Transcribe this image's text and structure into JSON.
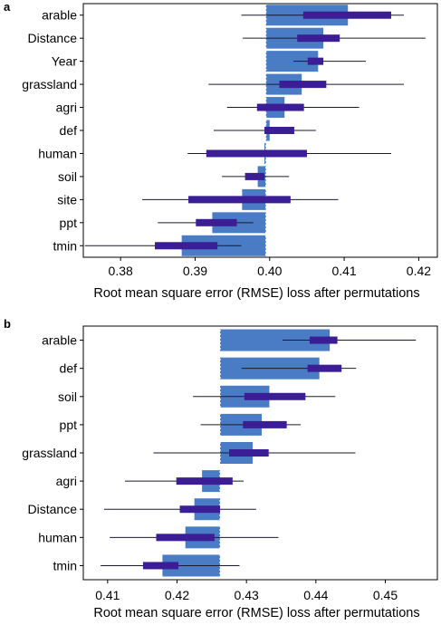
{
  "chart_data": [
    {
      "panel": "a",
      "type": "bar",
      "title": "",
      "xlabel": "Root mean square error (RMSE) loss after permutations",
      "ylabel": "",
      "xlim": [
        0.375,
        0.4225
      ],
      "ticks": [
        0.38,
        0.39,
        0.4,
        0.41,
        0.42
      ],
      "tick_labels": [
        "0.38",
        "0.39",
        "0.40",
        "0.41",
        "0.42"
      ],
      "baseline": 0.3995,
      "categories": [
        "arable",
        "Distance",
        "Year",
        "grassland",
        "agri",
        "def",
        "human",
        "soil",
        "site",
        "ppt",
        "tmin"
      ],
      "values": [
        0.4105,
        0.4072,
        0.4065,
        0.4043,
        0.402,
        0.4,
        0.3993,
        0.3984,
        0.3963,
        0.3923,
        0.3882
      ],
      "inner_interval": [
        [
          0.4045,
          0.4163
        ],
        [
          0.4037,
          0.4094
        ],
        [
          0.4051,
          0.4072
        ],
        [
          0.4013,
          0.4076
        ],
        [
          0.3983,
          0.4046
        ],
        [
          0.3993,
          0.4033
        ],
        [
          0.3915,
          0.405
        ],
        [
          0.3967,
          0.3993
        ],
        [
          0.3891,
          0.4028
        ],
        [
          0.3901,
          0.3956
        ],
        [
          0.3846,
          0.393
        ]
      ],
      "outer_interval": [
        [
          0.3962,
          0.418
        ],
        [
          0.3964,
          0.4209
        ],
        [
          0.4032,
          0.4129
        ],
        [
          0.3918,
          0.418
        ],
        [
          0.3943,
          0.412
        ],
        [
          0.3925,
          0.4062
        ],
        [
          0.389,
          0.4163
        ],
        [
          0.3936,
          0.4026
        ],
        [
          0.3829,
          0.4092
        ],
        [
          0.385,
          0.3978
        ],
        [
          0.3752,
          0.3962
        ]
      ]
    },
    {
      "panel": "b",
      "type": "bar",
      "title": "",
      "xlabel": "Root mean square error (RMSE) loss after permutations",
      "ylabel": "",
      "xlim": [
        0.4065,
        0.4575
      ],
      "ticks": [
        0.41,
        0.42,
        0.43,
        0.44,
        0.45
      ],
      "tick_labels": [
        "0.41",
        "0.42",
        "0.43",
        "0.44",
        "0.45"
      ],
      "baseline": 0.4262,
      "categories": [
        "arable",
        "def",
        "soil",
        "ppt",
        "grassland",
        "agri",
        "Distance",
        "human",
        "tmin"
      ],
      "values": [
        0.442,
        0.4405,
        0.4333,
        0.4322,
        0.4309,
        0.4236,
        0.4225,
        0.4212,
        0.4179
      ],
      "inner_interval": [
        [
          0.4391,
          0.4431
        ],
        [
          0.4388,
          0.4437
        ],
        [
          0.4297,
          0.4385
        ],
        [
          0.4295,
          0.4358
        ],
        [
          0.4275,
          0.4332
        ],
        [
          0.4199,
          0.428
        ],
        [
          0.4204,
          0.4262
        ],
        [
          0.417,
          0.4254
        ],
        [
          0.4151,
          0.4202
        ]
      ],
      "outer_interval": [
        [
          0.4352,
          0.4544
        ],
        [
          0.4293,
          0.4458
        ],
        [
          0.4223,
          0.4428
        ],
        [
          0.4234,
          0.4378
        ],
        [
          0.4166,
          0.4457
        ],
        [
          0.4125,
          0.4296
        ],
        [
          0.4095,
          0.4314
        ],
        [
          0.4103,
          0.4346
        ],
        [
          0.409,
          0.429
        ]
      ]
    }
  ],
  "colors": {
    "bar": "#4a7cc6",
    "interval": "#3b1d96",
    "whisker": "#1a1a2e",
    "baseline": "#ffffff",
    "frame": "#000000"
  }
}
